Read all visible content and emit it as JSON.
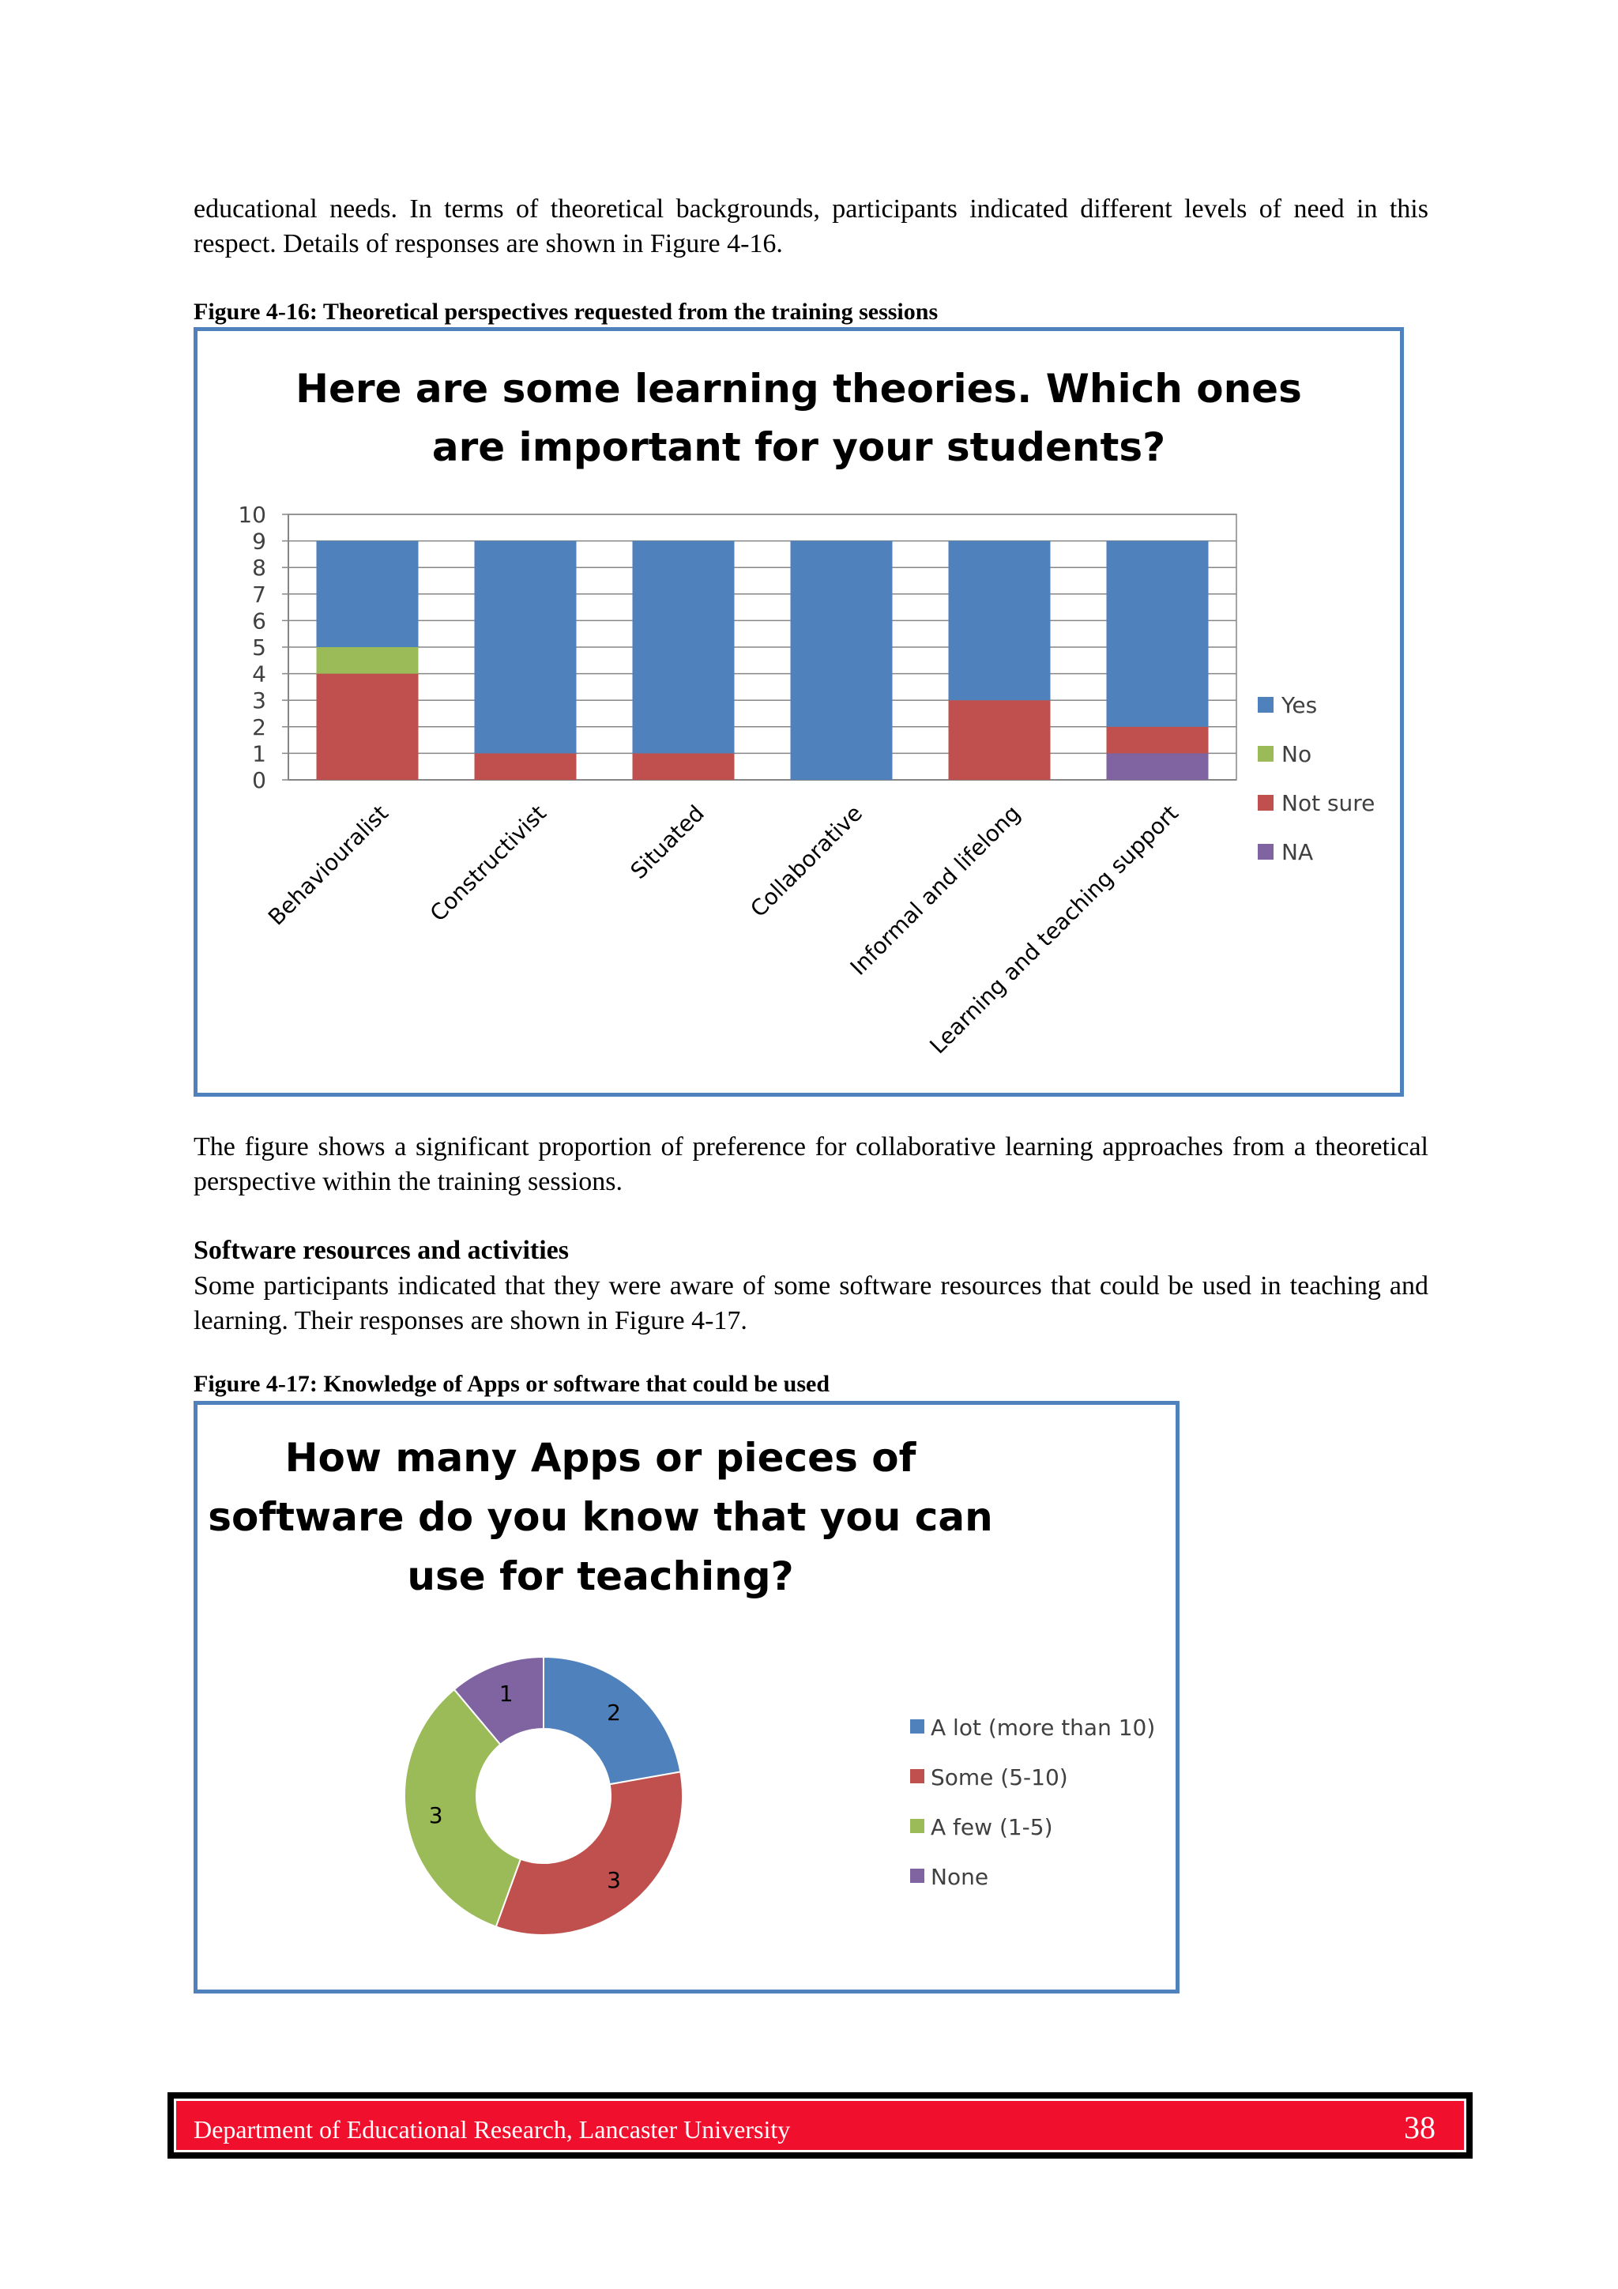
{
  "intro_paragraph": "educational needs. In terms of theoretical backgrounds, participants indicated different levels of need in this respect. Details of responses are shown in Figure 4-16.",
  "figure1": {
    "caption": "Figure 4-16: Theoretical perspectives requested from the training sessions",
    "title_line1": "Here are some learning theories. Which ones",
    "title_line2": "are important for your students?"
  },
  "middle_paragraph": "The figure shows a significant proportion of preference for collaborative learning approaches from a theoretical perspective within the training sessions.",
  "section_heading": "Software resources and activities",
  "section_paragraph": "Some participants indicated that they were aware of some software resources that could be used in teaching and learning. Their responses are shown in Figure 4-17.",
  "figure2": {
    "caption": "Figure 4-17: Knowledge of Apps or software that could be used",
    "title_line1": "How many Apps or pieces of",
    "title_line2": "software do you know that you can",
    "title_line3": "use for teaching?"
  },
  "footer": {
    "text": "Department of Educational Research, Lancaster University",
    "page_number": "38"
  },
  "colors": {
    "yes": "#4f81bd",
    "no": "#9bbb59",
    "not_sure": "#c0504d",
    "na": "#8064a2",
    "frame": "#4f81bd",
    "footer": "#f0102e"
  },
  "chart_data": [
    {
      "type": "bar",
      "stacked": true,
      "title": "Here are some learning theories. Which ones are important for your students?",
      "categories": [
        "Behaviouralist",
        "Constructivist",
        "Situated",
        "Collaborative",
        "Informal and lifelong",
        "Learning and teaching support"
      ],
      "series": [
        {
          "name": "NA",
          "color": "#8064a2",
          "values": [
            0,
            0,
            0,
            0,
            0,
            1
          ]
        },
        {
          "name": "Not sure",
          "color": "#c0504d",
          "values": [
            4,
            1,
            1,
            0,
            3,
            1
          ]
        },
        {
          "name": "No",
          "color": "#9bbb59",
          "values": [
            1,
            0,
            0,
            0,
            0,
            0
          ]
        },
        {
          "name": "Yes",
          "color": "#4f81bd",
          "values": [
            4,
            8,
            8,
            9,
            6,
            7
          ]
        }
      ],
      "legend_order": [
        "Yes",
        "No",
        "Not sure",
        "NA"
      ],
      "yticks": [
        "0",
        "1",
        "2",
        "3",
        "4",
        "5",
        "6",
        "7",
        "8",
        "9",
        "10"
      ],
      "ylim": [
        0,
        10
      ],
      "grid": true,
      "legend_position": "right"
    },
    {
      "type": "pie",
      "donut": true,
      "title": "How many Apps or pieces of software do you know that you can use for teaching?",
      "slices": [
        {
          "label": "A lot (more than 10)",
          "value": 2,
          "display": "2",
          "color": "#4f81bd"
        },
        {
          "label": "Some (5-10)",
          "value": 3,
          "display": "3",
          "color": "#c0504d"
        },
        {
          "label": "A few (1-5)",
          "value": 3,
          "display": "3",
          "color": "#9bbb59"
        },
        {
          "label": "None",
          "value": 1,
          "display": "1",
          "color": "#8064a2"
        }
      ],
      "legend_position": "right"
    }
  ]
}
